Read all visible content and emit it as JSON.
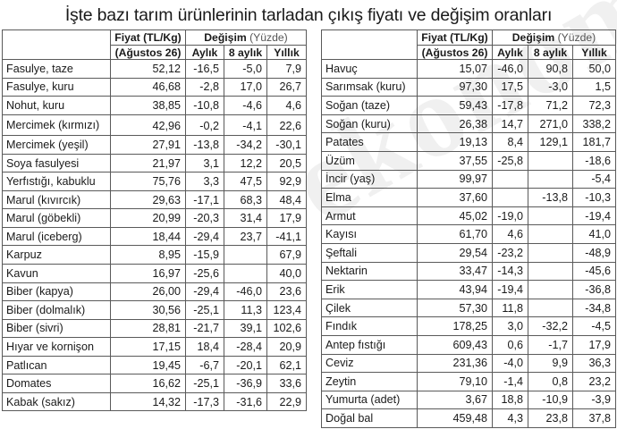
{
  "title": "İşte bazı tarım ürünlerinin tarladan çıkış fiyatı ve değişim oranları",
  "watermark": "ekonomi",
  "headers": {
    "price_line1": "Fiyat (TL/Kg)",
    "price_line2": "(Ağustos 26)",
    "change": "Değişim",
    "change_unit": "(Yüzde)",
    "monthly": "Aylık",
    "eight_month": "8 aylık",
    "yearly": "Yıllık"
  },
  "left_rows": [
    {
      "name": "Fasulye, taze",
      "price": "52,12",
      "monthly": "-16,5",
      "eight": "-5,0",
      "yearly": "7,9"
    },
    {
      "name": "Fasulye, kuru",
      "price": "46,68",
      "monthly": "-2,8",
      "eight": "17,0",
      "yearly": "26,7"
    },
    {
      "name": "Nohut, kuru",
      "price": "38,85",
      "monthly": "-10,8",
      "eight": "-4,6",
      "yearly": "4,6"
    },
    {
      "name": "Mercimek (kırmızı)",
      "price": "42,96",
      "monthly": "-0,2",
      "eight": "-4,1",
      "yearly": "22,6"
    },
    {
      "name": "Mercimek (yeşil)",
      "price": "27,91",
      "monthly": "-13,8",
      "eight": "-34,2",
      "yearly": "-30,1"
    },
    {
      "name": "Soya fasulyesi",
      "price": "21,97",
      "monthly": "3,1",
      "eight": "12,2",
      "yearly": "20,5"
    },
    {
      "name": "Yerfıstığı, kabuklu",
      "price": "75,76",
      "monthly": "3,3",
      "eight": "47,5",
      "yearly": "92,9"
    },
    {
      "name": "Marul (kıvırcık)",
      "price": "29,63",
      "monthly": "-17,1",
      "eight": "68,3",
      "yearly": "48,4"
    },
    {
      "name": "Marul (göbekli)",
      "price": "20,99",
      "monthly": "-20,3",
      "eight": "31,4",
      "yearly": "17,9"
    },
    {
      "name": "Marul (iceberg)",
      "price": "18,44",
      "monthly": "-29,4",
      "eight": "23,7",
      "yearly": "-41,1"
    },
    {
      "name": "Karpuz",
      "price": "8,95",
      "monthly": "-15,9",
      "eight": "",
      "yearly": "67,9"
    },
    {
      "name": "Kavun",
      "price": "16,97",
      "monthly": "-25,6",
      "eight": "",
      "yearly": "40,0"
    },
    {
      "name": "Biber (kapya)",
      "price": "26,00",
      "monthly": "-29,4",
      "eight": "-46,0",
      "yearly": "23,6"
    },
    {
      "name": "Biber (dolmalık)",
      "price": "30,56",
      "monthly": "-25,1",
      "eight": "11,3",
      "yearly": "123,4"
    },
    {
      "name": "Biber (sivri)",
      "price": "28,81",
      "monthly": "-21,7",
      "eight": "39,1",
      "yearly": "102,6"
    },
    {
      "name": "Hıyar ve kornişon",
      "price": "17,15",
      "monthly": "18,4",
      "eight": "-28,4",
      "yearly": "20,9"
    },
    {
      "name": "Patlıcan",
      "price": "19,45",
      "monthly": "-6,7",
      "eight": "-20,1",
      "yearly": "62,1"
    },
    {
      "name": "Domates",
      "price": "16,62",
      "monthly": "-25,1",
      "eight": "-36,9",
      "yearly": "33,6"
    },
    {
      "name": "Kabak (sakız)",
      "price": "14,32",
      "monthly": "-17,3",
      "eight": "-31,6",
      "yearly": "22,9"
    }
  ],
  "right_rows": [
    {
      "name": "Havuç",
      "price": "15,07",
      "monthly": "-46,0",
      "eight": "90,8",
      "yearly": "50,0"
    },
    {
      "name": "Sarımsak (kuru)",
      "price": "97,30",
      "monthly": "17,5",
      "eight": "-3,0",
      "yearly": "1,5"
    },
    {
      "name": "Soğan (taze)",
      "price": "59,43",
      "monthly": "-17,8",
      "eight": "71,2",
      "yearly": "72,3"
    },
    {
      "name": "Soğan (kuru)",
      "price": "26,38",
      "monthly": "14,7",
      "eight": "271,0",
      "yearly": "338,2"
    },
    {
      "name": "Patates",
      "price": "19,13",
      "monthly": "8,4",
      "eight": "129,1",
      "yearly": "181,7"
    },
    {
      "name": "Üzüm",
      "price": "37,55",
      "monthly": "-25,8",
      "eight": "",
      "yearly": "-18,6"
    },
    {
      "name": "İncir (yaş)",
      "price": "99,97",
      "monthly": "",
      "eight": "",
      "yearly": "-5,4"
    },
    {
      "name": "Elma",
      "price": "37,60",
      "monthly": "",
      "eight": "-13,8",
      "yearly": "-10,3"
    },
    {
      "name": "Armut",
      "price": "45,02",
      "monthly": "-19,0",
      "eight": "",
      "yearly": "-19,4"
    },
    {
      "name": "Kayısı",
      "price": "61,70",
      "monthly": "4,6",
      "eight": "",
      "yearly": "41,0"
    },
    {
      "name": "Şeftali",
      "price": "29,54",
      "monthly": "-23,2",
      "eight": "",
      "yearly": "-48,9"
    },
    {
      "name": "Nektarin",
      "price": "33,47",
      "monthly": "-14,3",
      "eight": "",
      "yearly": "-45,6"
    },
    {
      "name": "Erik",
      "price": "43,94",
      "monthly": "-19,4",
      "eight": "",
      "yearly": "-36,8"
    },
    {
      "name": "Çilek",
      "price": "57,30",
      "monthly": "11,8",
      "eight": "",
      "yearly": "-34,8"
    },
    {
      "name": "Fındık",
      "price": "178,25",
      "monthly": "3,0",
      "eight": "-32,2",
      "yearly": "-4,5"
    },
    {
      "name": "Antep fıstığı",
      "price": "609,43",
      "monthly": "0,6",
      "eight": "-1,7",
      "yearly": "17,9"
    },
    {
      "name": "Ceviz",
      "price": "231,36",
      "monthly": "-4,0",
      "eight": "9,9",
      "yearly": "36,3"
    },
    {
      "name": "Zeytin",
      "price": "79,10",
      "monthly": "-1,4",
      "eight": "0,8",
      "yearly": "23,2"
    },
    {
      "name": "Yumurta (adet)",
      "price": "3,67",
      "monthly": "18,8",
      "eight": "-10,9",
      "yearly": "-3,9"
    },
    {
      "name": "Doğal bal",
      "price": "459,48",
      "monthly": "4,3",
      "eight": "23,8",
      "yearly": "37,8"
    }
  ]
}
